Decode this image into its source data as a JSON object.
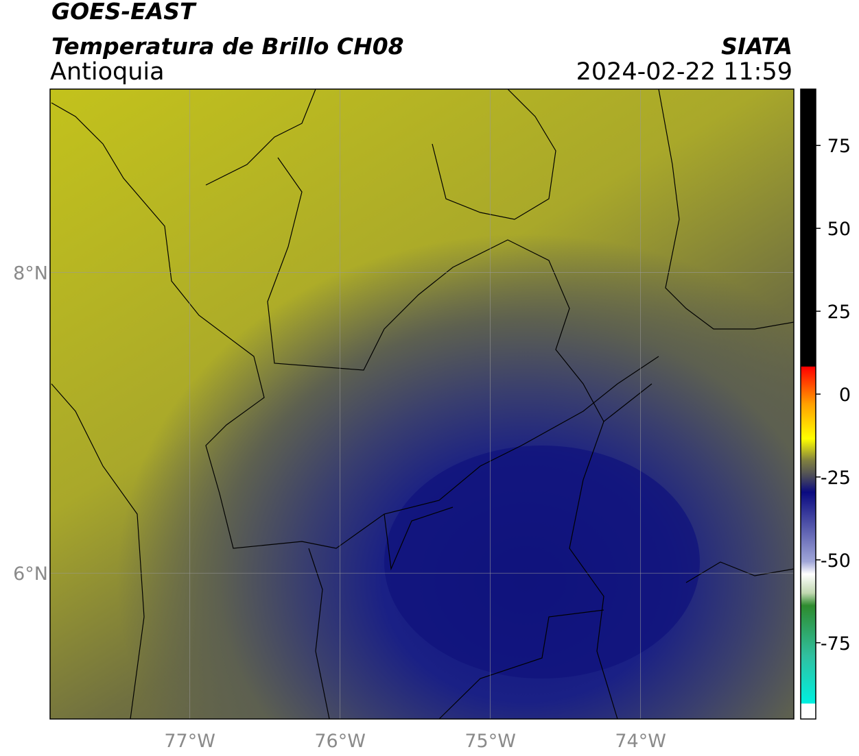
{
  "header": {
    "title": "GOES-EAST",
    "subtitle": "Temperatura de Brillo CH08",
    "region": "Antioquia",
    "source": "SIATA",
    "timestamp": "2024-02-22 11:59"
  },
  "map": {
    "lonlim": [
      -77.93,
      -72.98
    ],
    "latlim": [
      5.03,
      9.22
    ],
    "lon_ticks": [
      {
        "value": -77,
        "label": "77°W"
      },
      {
        "value": -76,
        "label": "76°W"
      },
      {
        "value": -75,
        "label": "75°W"
      },
      {
        "value": -74,
        "label": "74°W"
      }
    ],
    "lat_ticks": [
      {
        "value": 8,
        "label": "8°N"
      },
      {
        "value": 6,
        "label": "6°N"
      }
    ],
    "grid": true
  },
  "colorbar": {
    "lim": [
      -98,
      92
    ],
    "ticks": [
      75,
      50,
      25,
      0,
      -25,
      -50,
      -75
    ]
  }
}
